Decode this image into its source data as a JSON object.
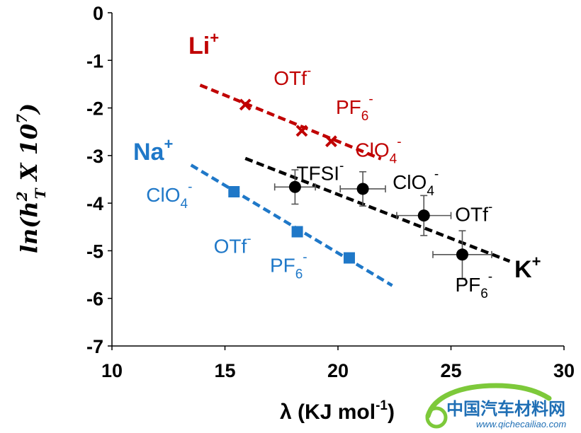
{
  "chart_data": {
    "type": "scatter",
    "xlabel": "λ (KJ mol",
    "xlabel_sup": "-1",
    "xlabel_end": ")",
    "ylabel": "ln(h",
    "ylabel_sup": "2",
    "ylabel_sub": "T",
    "ylabel_end": " X 10",
    "ylabel_exp": "7",
    "ylabel_close": ")",
    "xlim": [
      10,
      30
    ],
    "ylim": [
      -7,
      0
    ],
    "xticks": [
      "10",
      "15",
      "20",
      "25",
      "30"
    ],
    "yticks": [
      "0",
      "-1",
      "-2",
      "-3",
      "-4",
      "-5",
      "-6",
      "-7"
    ],
    "series": [
      {
        "name": "Li",
        "name_sup": "+",
        "color": "#c00000",
        "marker": "x",
        "fit": {
          "x": [
            13.9,
            21.9
          ],
          "y": [
            -1.52,
            -3.07
          ]
        },
        "points": [
          {
            "x": 15.9,
            "y": -1.93,
            "label": "OTf",
            "label_sup": "-"
          },
          {
            "x": 18.4,
            "y": -2.48,
            "label": "PF",
            "label_sub": "6",
            "label_sup": "-"
          },
          {
            "x": 19.7,
            "y": -2.7,
            "label": "ClO",
            "label_sub": "4",
            "label_sup": "-"
          }
        ]
      },
      {
        "name": "Na",
        "name_sup": "+",
        "color": "#1f78c8",
        "marker": "square",
        "fit": {
          "x": [
            13.5,
            22.4
          ],
          "y": [
            -3.2,
            -5.73
          ]
        },
        "points": [
          {
            "x": 15.4,
            "y": -3.76,
            "label": "ClO",
            "label_sub": "4",
            "label_sup": "-"
          },
          {
            "x": 18.2,
            "y": -4.6,
            "label": "OTf",
            "label_sup": "-"
          },
          {
            "x": 20.5,
            "y": -5.15,
            "label": "PF",
            "label_sub": "6",
            "label_sup": "-"
          }
        ]
      },
      {
        "name": "K",
        "name_sup": "+",
        "color": "#000000",
        "marker": "circle",
        "fit": {
          "x": [
            15.9,
            27.6
          ],
          "y": [
            -3.06,
            -5.22
          ]
        },
        "points": [
          {
            "x": 18.1,
            "y": -3.66,
            "xerr": 0.9,
            "yerr": 0.36,
            "label": "TFSI",
            "label_sup": "-"
          },
          {
            "x": 21.1,
            "y": -3.7,
            "xerr": 1.0,
            "yerr": 0.36,
            "label": "ClO",
            "label_sub": "4",
            "label_sup": "-"
          },
          {
            "x": 23.8,
            "y": -4.26,
            "xerr": 1.2,
            "yerr": 0.42,
            "label": "OTf",
            "label_sup": "-"
          },
          {
            "x": 25.5,
            "y": -5.08,
            "xerr": 1.3,
            "yerr": 0.5,
            "label": "PF",
            "label_sub": "6",
            "label_sup": "-"
          }
        ]
      }
    ]
  },
  "watermark": {
    "title": "中国汽车材料网",
    "url": "www.qichecailiao.com"
  }
}
